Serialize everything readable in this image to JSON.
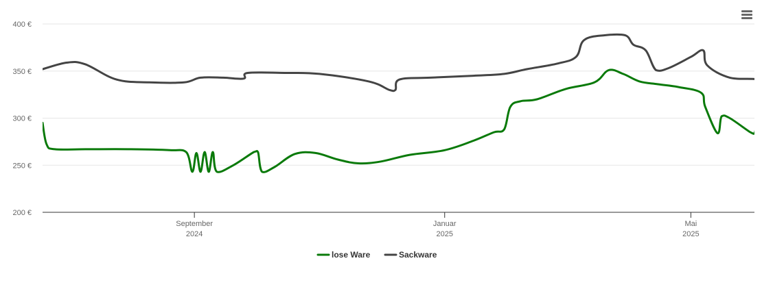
{
  "menu": {
    "icon": "hamburger-menu-icon"
  },
  "colors": {
    "lose_ware": "#0a7a0a",
    "sackware": "#444444",
    "grid": "#e6e6e6",
    "axis": "#333333"
  },
  "chart_data": {
    "type": "line",
    "title": "",
    "xlabel": "",
    "ylabel": "",
    "ylim": [
      200,
      400
    ],
    "xlim": [
      "2024-06-19",
      "2025-06-01"
    ],
    "grid": true,
    "legend_position": "bottom-center",
    "y_ticks": [
      {
        "value": 200,
        "label": "200 €"
      },
      {
        "value": 250,
        "label": "250 €"
      },
      {
        "value": 300,
        "label": "300 €"
      },
      {
        "value": 350,
        "label": "350 €"
      },
      {
        "value": 400,
        "label": "400 €"
      }
    ],
    "x_ticks": [
      {
        "date": "2024-09-01",
        "label1": "September",
        "label2": "2024"
      },
      {
        "date": "2025-01-01",
        "label1": "Januar",
        "label2": "2025"
      },
      {
        "date": "2025-05-01",
        "label1": "Mai",
        "label2": "2025"
      }
    ],
    "series": [
      {
        "name": "lose Ware",
        "color": "#0a7a0a",
        "points": [
          [
            "2024-06-19",
            295
          ],
          [
            "2024-06-21",
            272
          ],
          [
            "2024-06-25",
            267
          ],
          [
            "2024-07-10",
            267
          ],
          [
            "2024-08-01",
            267
          ],
          [
            "2024-08-20",
            266
          ],
          [
            "2024-08-28",
            264
          ],
          [
            "2024-08-31",
            243
          ],
          [
            "2024-09-02",
            263
          ],
          [
            "2024-09-04",
            243
          ],
          [
            "2024-09-06",
            264
          ],
          [
            "2024-09-08",
            243
          ],
          [
            "2024-09-10",
            264
          ],
          [
            "2024-09-12",
            243
          ],
          [
            "2024-09-20",
            250
          ],
          [
            "2024-09-30",
            264
          ],
          [
            "2024-10-02",
            264
          ],
          [
            "2024-10-04",
            243
          ],
          [
            "2024-10-10",
            248
          ],
          [
            "2024-10-20",
            262
          ],
          [
            "2024-10-30",
            263
          ],
          [
            "2024-11-10",
            256
          ],
          [
            "2024-11-20",
            252
          ],
          [
            "2024-12-01",
            254
          ],
          [
            "2024-12-15",
            261
          ],
          [
            "2025-01-01",
            266
          ],
          [
            "2025-01-15",
            276
          ],
          [
            "2025-01-25",
            285
          ],
          [
            "2025-01-30",
            288
          ],
          [
            "2025-02-02",
            312
          ],
          [
            "2025-02-07",
            318
          ],
          [
            "2025-02-15",
            320
          ],
          [
            "2025-03-01",
            331
          ],
          [
            "2025-03-15",
            338
          ],
          [
            "2025-03-22",
            351
          ],
          [
            "2025-03-29",
            347
          ],
          [
            "2025-04-06",
            339
          ],
          [
            "2025-04-15",
            336
          ],
          [
            "2025-04-25",
            333
          ],
          [
            "2025-05-06",
            327
          ],
          [
            "2025-05-08",
            312
          ],
          [
            "2025-05-14",
            284
          ],
          [
            "2025-05-16",
            302
          ],
          [
            "2025-05-20",
            300
          ],
          [
            "2025-05-30",
            285
          ],
          [
            "2025-06-01",
            284
          ],
          [
            "2025-06-02",
            288
          ],
          [
            "2025-06-06",
            287
          ]
        ]
      },
      {
        "name": "Sackware",
        "color": "#444444",
        "points": [
          [
            "2024-06-19",
            352
          ],
          [
            "2024-07-01",
            359
          ],
          [
            "2024-07-10",
            357
          ],
          [
            "2024-07-25",
            341
          ],
          [
            "2024-08-10",
            338
          ],
          [
            "2024-08-27",
            338
          ],
          [
            "2024-09-04",
            343
          ],
          [
            "2024-09-15",
            343
          ],
          [
            "2024-09-25",
            342
          ],
          [
            "2024-09-27",
            348
          ],
          [
            "2024-10-15",
            348
          ],
          [
            "2024-11-01",
            347
          ],
          [
            "2024-11-25",
            339
          ],
          [
            "2024-12-05",
            330
          ],
          [
            "2024-12-08",
            330
          ],
          [
            "2024-12-10",
            341
          ],
          [
            "2024-12-25",
            343
          ],
          [
            "2025-01-15",
            345
          ],
          [
            "2025-01-30",
            347
          ],
          [
            "2025-02-10",
            352
          ],
          [
            "2025-02-25",
            358
          ],
          [
            "2025-03-06",
            365
          ],
          [
            "2025-03-10",
            383
          ],
          [
            "2025-03-20",
            388
          ],
          [
            "2025-03-30",
            388
          ],
          [
            "2025-04-03",
            378
          ],
          [
            "2025-04-09",
            372
          ],
          [
            "2025-04-14",
            351
          ],
          [
            "2025-04-20",
            353
          ],
          [
            "2025-05-01",
            365
          ],
          [
            "2025-05-07",
            372
          ],
          [
            "2025-05-09",
            356
          ],
          [
            "2025-05-20",
            343
          ],
          [
            "2025-06-04",
            340
          ],
          [
            "2025-06-06",
            324
          ]
        ]
      }
    ]
  }
}
